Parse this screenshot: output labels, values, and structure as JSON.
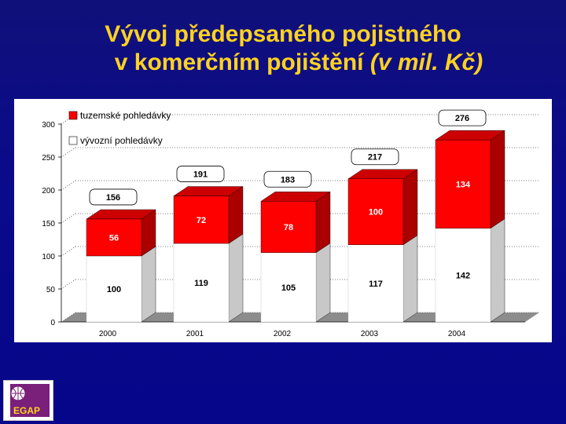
{
  "title": {
    "line1": "Vývoj předepsaného pojistného",
    "line2_main": "v komerčním pojištění",
    "line2_italic": "(v mil. Kč)"
  },
  "logo": {
    "text": "EGAP"
  },
  "colors": {
    "domestic": "#ff0000",
    "export": "#ffffff",
    "title": "#ffd21f",
    "background": "#0a0a8c"
  },
  "chart_data": {
    "type": "bar",
    "stacked": true,
    "three_d": true,
    "categories": [
      "2000",
      "2001",
      "2002",
      "2003",
      "2004"
    ],
    "series": [
      {
        "name": "vývozní pohledávky",
        "color": "#ffffff",
        "values": [
          100,
          119,
          105,
          117,
          142
        ]
      },
      {
        "name": "tuzemské pohledávky",
        "color": "#ff0000",
        "values": [
          56,
          72,
          78,
          100,
          134
        ]
      }
    ],
    "totals": [
      156,
      191,
      183,
      217,
      276
    ],
    "ylim": [
      0,
      300
    ],
    "yticks": [
      0,
      50,
      100,
      150,
      200,
      250,
      300
    ],
    "legend_position": "top-left",
    "grid": true
  }
}
